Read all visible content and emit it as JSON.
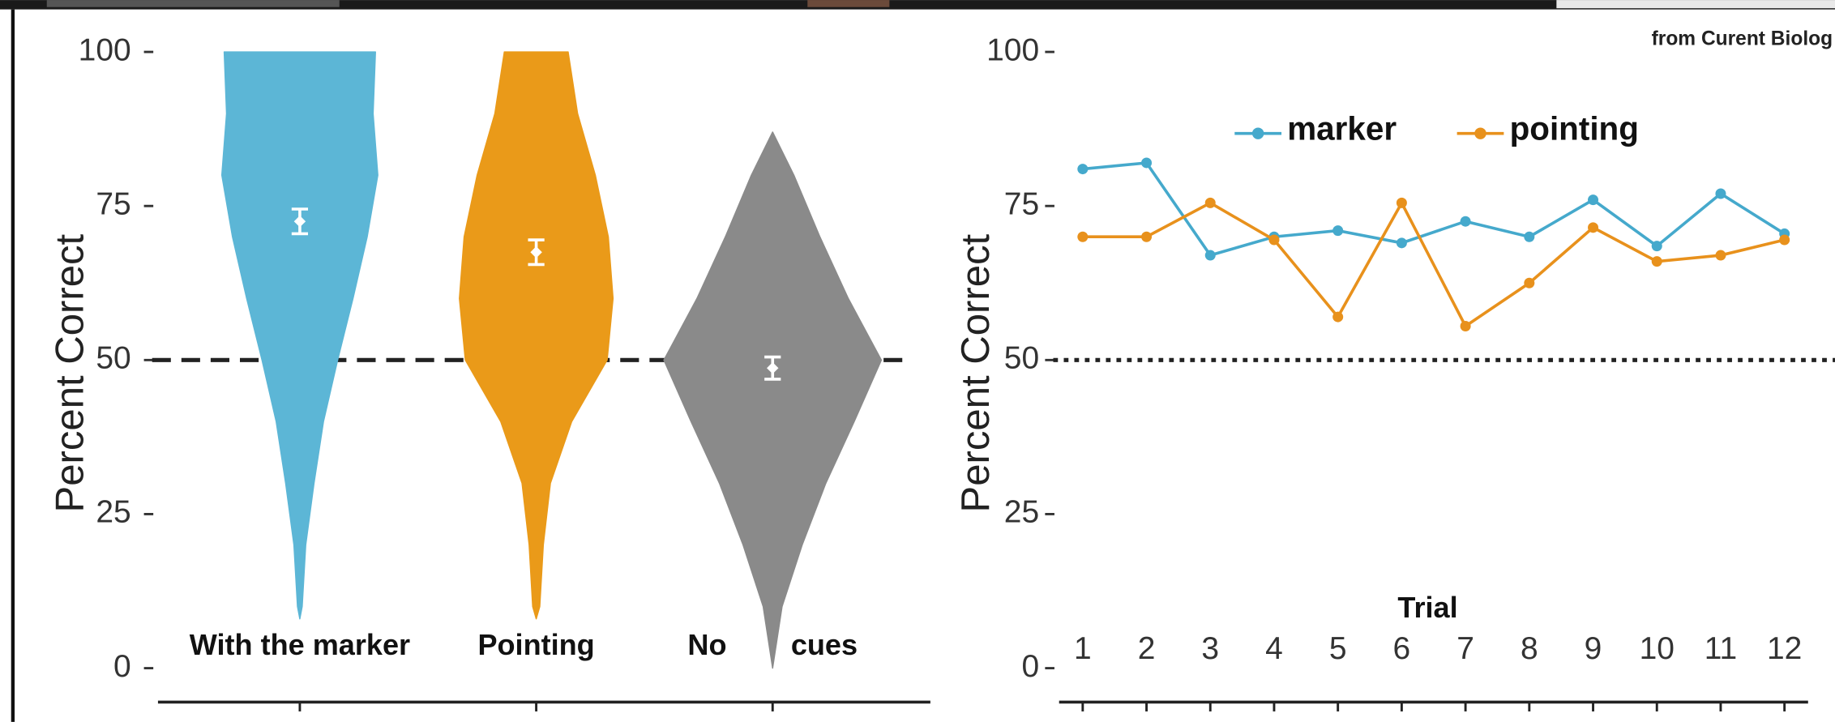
{
  "chart_data": [
    {
      "type": "violin",
      "ylabel": "Percent Correct",
      "categories": [
        "With the marker",
        "Pointing",
        "No cues"
      ],
      "colors": [
        "#5cb6d6",
        "#ea9a19",
        "#8a8a8a"
      ],
      "density_levels": [
        0,
        10,
        20,
        30,
        40,
        50,
        60,
        70,
        80,
        90,
        100
      ],
      "violins": [
        {
          "range": [
            8,
            100
          ],
          "density": [
            null,
            0.02,
            0.05,
            0.12,
            0.2,
            0.32,
            0.45,
            0.57,
            0.66,
            0.62,
            0.64
          ]
        },
        {
          "range": [
            8,
            100
          ],
          "density": [
            null,
            0.03,
            0.06,
            0.12,
            0.3,
            0.6,
            0.65,
            0.61,
            0.5,
            0.35,
            0.27
          ]
        },
        {
          "range": [
            0,
            87
          ],
          "density": [
            null,
            0.08,
            0.25,
            0.45,
            0.69,
            0.92,
            0.64,
            0.4,
            0.18,
            null,
            null
          ]
        }
      ],
      "means": [
        72.5,
        67.5,
        48.7
      ],
      "errors": [
        2,
        2,
        1.8
      ],
      "marker_color": "#ffffff",
      "ylim": [
        -5.5,
        105
      ],
      "yticks": [
        0,
        25,
        50,
        75,
        100
      ],
      "reference_line": {
        "value": 50,
        "style": "dashed"
      }
    },
    {
      "type": "line",
      "ylabel": "Percent Correct",
      "xlabel": "Trial",
      "annotation": "from Curent Biolog",
      "x": [
        1,
        2,
        3,
        4,
        5,
        6,
        7,
        8,
        9,
        10,
        11,
        12
      ],
      "series": [
        {
          "name": "marker",
          "color": "#45a9cc",
          "values": [
            81,
            82,
            67,
            70,
            71,
            69,
            72.5,
            70,
            76,
            68.5,
            77,
            70.5
          ]
        },
        {
          "name": "pointing",
          "color": "#e8911c",
          "values": [
            70,
            70,
            75.5,
            69.5,
            57,
            75.5,
            55.5,
            62.5,
            71.5,
            66,
            67,
            69.5
          ]
        }
      ],
      "legend": "top",
      "xlim": [
        0.63,
        12.37
      ],
      "xticks": [
        1,
        2,
        3,
        4,
        5,
        6,
        7,
        8,
        9,
        10,
        11,
        12
      ],
      "ylim": [
        -5.5,
        105
      ],
      "yticks": [
        0,
        25,
        50,
        75,
        100
      ],
      "reference_line": {
        "value": 50,
        "style": "dotted"
      }
    }
  ]
}
